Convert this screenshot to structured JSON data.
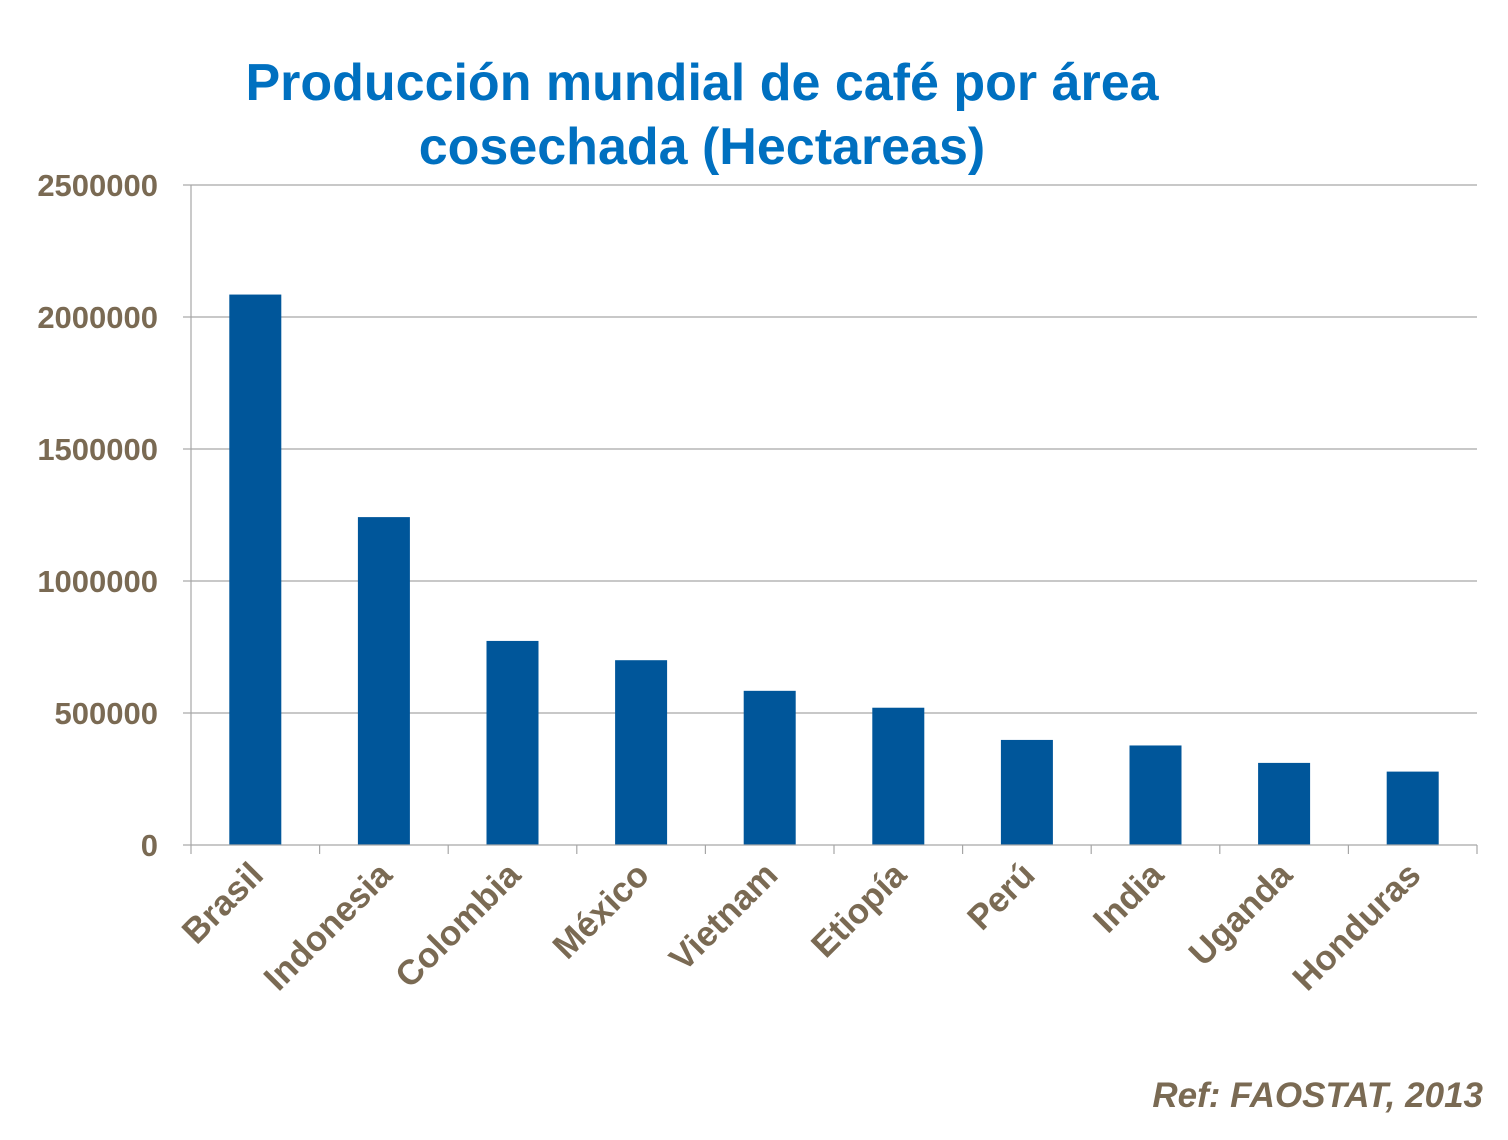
{
  "chart_data": {
    "type": "bar",
    "title_lines": [
      "Producción mundial de café por área",
      "cosechada (Hectareas)"
    ],
    "categories": [
      "Brasil",
      "Indonesia",
      "Colombia",
      "México",
      "Vietnam",
      "Etiopía",
      "Perú",
      "India",
      "Uganda",
      "Honduras"
    ],
    "values": [
      2085000,
      1242000,
      773000,
      700000,
      584000,
      520000,
      398000,
      377000,
      311000,
      278000
    ],
    "yticks": [
      "0",
      "500000",
      "1000000",
      "1500000",
      "2000000",
      "2500000"
    ],
    "ylim": [
      0,
      2500000
    ],
    "grid": true,
    "legend": "none",
    "bar_color": "#00569a",
    "grid_color": "#a6a6a6",
    "title_color": "#0070c0",
    "label_color": "#7a6a53"
  },
  "footer": {
    "reference": "Ref: FAOSTAT, 2013"
  }
}
